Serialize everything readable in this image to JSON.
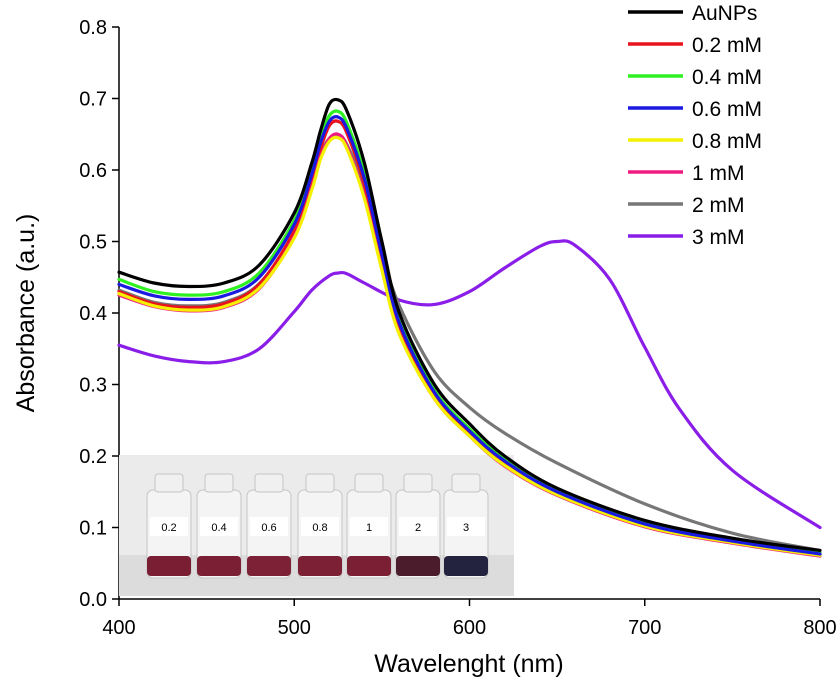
{
  "chart_data": {
    "type": "line",
    "title": "",
    "xlabel": "Wavelenght (nm)",
    "ylabel": "Absorbance (a.u.)",
    "xlim": [
      400,
      800
    ],
    "ylim": [
      0.0,
      0.8
    ],
    "xticks": [
      400,
      500,
      600,
      700,
      800
    ],
    "yticks": [
      "0.0",
      "0.1",
      "0.2",
      "0.3",
      "0.4",
      "0.5",
      "0.6",
      "0.7",
      "0.8"
    ],
    "grid": false,
    "legend": "top-right",
    "series": [
      {
        "name": "AuNPs",
        "color": "#000000",
        "x": [
          400,
          420,
          440,
          460,
          480,
          500,
          510,
          515,
          520,
          525,
          530,
          540,
          550,
          560,
          580,
          600,
          620,
          650,
          700,
          750,
          800
        ],
        "y": [
          0.457,
          0.442,
          0.437,
          0.442,
          0.467,
          0.54,
          0.61,
          0.655,
          0.692,
          0.698,
          0.683,
          0.61,
          0.5,
          0.4,
          0.3,
          0.245,
          0.2,
          0.155,
          0.11,
          0.085,
          0.068
        ]
      },
      {
        "name": "0.2 mM",
        "color": "#e8131d",
        "x": [
          400,
          420,
          440,
          460,
          480,
          500,
          510,
          515,
          520,
          525,
          530,
          540,
          550,
          560,
          580,
          600,
          620,
          650,
          700,
          750,
          800
        ],
        "y": [
          0.43,
          0.413,
          0.408,
          0.413,
          0.44,
          0.515,
          0.585,
          0.63,
          0.662,
          0.668,
          0.652,
          0.58,
          0.475,
          0.38,
          0.285,
          0.232,
          0.19,
          0.148,
          0.103,
          0.08,
          0.062
        ]
      },
      {
        "name": "0.4 mM",
        "color": "#2ff020",
        "x": [
          400,
          420,
          440,
          460,
          480,
          500,
          510,
          515,
          520,
          525,
          530,
          540,
          550,
          560,
          580,
          600,
          620,
          650,
          700,
          750,
          800
        ],
        "y": [
          0.447,
          0.43,
          0.425,
          0.43,
          0.456,
          0.53,
          0.602,
          0.646,
          0.676,
          0.682,
          0.666,
          0.595,
          0.488,
          0.39,
          0.292,
          0.238,
          0.195,
          0.152,
          0.106,
          0.082,
          0.064
        ]
      },
      {
        "name": "0.6 mM",
        "color": "#1a1ae0",
        "x": [
          400,
          420,
          440,
          460,
          480,
          500,
          510,
          515,
          520,
          525,
          530,
          540,
          550,
          560,
          580,
          600,
          620,
          650,
          700,
          750,
          800
        ],
        "y": [
          0.44,
          0.424,
          0.419,
          0.424,
          0.45,
          0.524,
          0.594,
          0.638,
          0.668,
          0.674,
          0.658,
          0.588,
          0.482,
          0.386,
          0.289,
          0.235,
          0.193,
          0.15,
          0.105,
          0.081,
          0.063
        ]
      },
      {
        "name": "0.8 mM",
        "color": "#f4f000",
        "x": [
          400,
          420,
          440,
          460,
          480,
          500,
          510,
          515,
          520,
          525,
          530,
          540,
          550,
          560,
          580,
          600,
          620,
          650,
          700,
          750,
          800
        ],
        "y": [
          0.427,
          0.41,
          0.404,
          0.409,
          0.435,
          0.505,
          0.572,
          0.615,
          0.64,
          0.645,
          0.63,
          0.56,
          0.46,
          0.37,
          0.28,
          0.228,
          0.187,
          0.146,
          0.102,
          0.079,
          0.061
        ]
      },
      {
        "name": "1 mM",
        "color": "#ee1c82",
        "x": [
          400,
          420,
          440,
          460,
          480,
          500,
          510,
          515,
          520,
          525,
          530,
          540,
          550,
          560,
          580,
          600,
          620,
          650,
          700,
          750,
          800
        ],
        "y": [
          0.425,
          0.409,
          0.403,
          0.408,
          0.434,
          0.507,
          0.575,
          0.618,
          0.644,
          0.65,
          0.634,
          0.563,
          0.462,
          0.371,
          0.28,
          0.228,
          0.186,
          0.145,
          0.101,
          0.078,
          0.06
        ]
      },
      {
        "name": "2 mM",
        "color": "#777777",
        "x": [
          400,
          420,
          440,
          460,
          480,
          500,
          510,
          515,
          520,
          525,
          530,
          540,
          550,
          560,
          580,
          600,
          620,
          650,
          700,
          750,
          800
        ],
        "y": [
          0.432,
          0.415,
          0.41,
          0.415,
          0.441,
          0.512,
          0.58,
          0.622,
          0.644,
          0.648,
          0.636,
          0.575,
          0.485,
          0.41,
          0.318,
          0.268,
          0.232,
          0.19,
          0.133,
          0.092,
          0.068
        ]
      },
      {
        "name": "3 mM",
        "color": "#8a1ee8",
        "x": [
          400,
          420,
          440,
          460,
          480,
          500,
          510,
          520,
          525,
          530,
          540,
          560,
          580,
          600,
          620,
          640,
          650,
          660,
          680,
          700,
          720,
          750,
          800
        ],
        "y": [
          0.355,
          0.34,
          0.332,
          0.332,
          0.35,
          0.402,
          0.432,
          0.452,
          0.456,
          0.455,
          0.442,
          0.418,
          0.412,
          0.43,
          0.463,
          0.493,
          0.5,
          0.495,
          0.447,
          0.352,
          0.265,
          0.18,
          0.1
        ]
      }
    ],
    "inset": {
      "description": "photo of vials",
      "vial_labels": [
        "0.2",
        "0.4",
        "0.6",
        "0.8",
        "1",
        "2",
        "3"
      ],
      "liquid_colors": [
        "#7a1e34",
        "#7b1f35",
        "#7d2136",
        "#7c2036",
        "#7a1f34",
        "#4a1c2c",
        "#23233f"
      ]
    }
  }
}
